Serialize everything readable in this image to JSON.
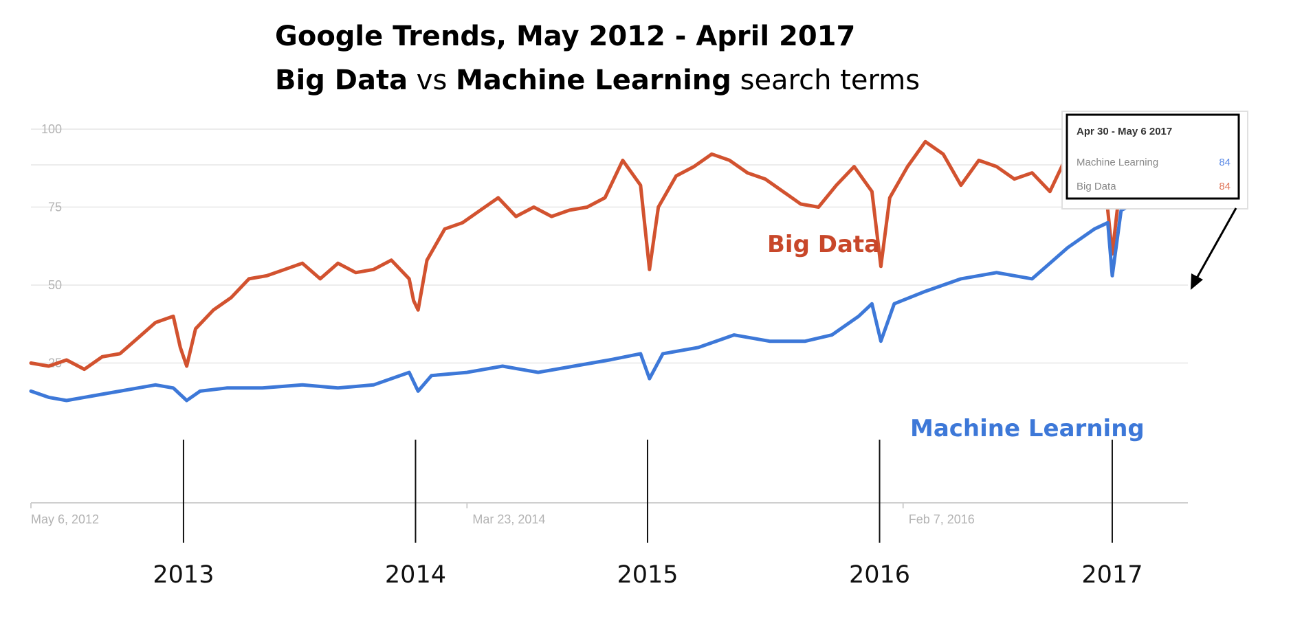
{
  "chart_data": {
    "type": "line",
    "title_line1": "Google Trends, May 2012 -  April 2017",
    "title_line2_parts": [
      {
        "text": "Big Data",
        "bold": true
      },
      {
        "text": " vs ",
        "bold": false
      },
      {
        "text": "Machine Learning",
        "bold": true
      },
      {
        "text": " search terms",
        "bold": false
      }
    ],
    "x_start": "2012-05-06",
    "x_end": "2017-04-30",
    "ylim": [
      0,
      100
    ],
    "y_ticks": [
      25,
      50,
      75,
      100
    ],
    "x_tick_labels": [
      {
        "date": "2012-05-06",
        "label": "May 6, 2012"
      },
      {
        "date": "2014-03-23",
        "label": "Mar 23, 2014"
      },
      {
        "date": "2016-02-07",
        "label": "Feb 7, 2016"
      }
    ],
    "year_markers": [
      {
        "date": "2013-01-01",
        "label": "2013"
      },
      {
        "date": "2014-01-01",
        "label": "2014"
      },
      {
        "date": "2015-01-01",
        "label": "2015"
      },
      {
        "date": "2016-01-01",
        "label": "2016"
      },
      {
        "date": "2017-01-01",
        "label": "2017"
      }
    ],
    "grid": true,
    "series": [
      {
        "name": "Big Data",
        "color": "#d2522f",
        "points": [
          [
            "2012-05-06",
            25
          ],
          [
            "2012-06-03",
            24
          ],
          [
            "2012-07-01",
            26
          ],
          [
            "2012-07-29",
            23
          ],
          [
            "2012-08-26",
            27
          ],
          [
            "2012-09-23",
            28
          ],
          [
            "2012-10-21",
            33
          ],
          [
            "2012-11-18",
            38
          ],
          [
            "2012-12-16",
            40
          ],
          [
            "2012-12-27",
            30
          ],
          [
            "2013-01-06",
            24
          ],
          [
            "2013-01-20",
            36
          ],
          [
            "2013-02-17",
            42
          ],
          [
            "2013-03-17",
            46
          ],
          [
            "2013-04-14",
            52
          ],
          [
            "2013-05-12",
            53
          ],
          [
            "2013-06-09",
            55
          ],
          [
            "2013-07-07",
            57
          ],
          [
            "2013-08-04",
            52
          ],
          [
            "2013-09-01",
            57
          ],
          [
            "2013-09-29",
            54
          ],
          [
            "2013-10-27",
            55
          ],
          [
            "2013-11-24",
            58
          ],
          [
            "2013-12-22",
            52
          ],
          [
            "2013-12-29",
            45
          ],
          [
            "2014-01-05",
            42
          ],
          [
            "2014-01-19",
            58
          ],
          [
            "2014-02-16",
            68
          ],
          [
            "2014-03-16",
            70
          ],
          [
            "2014-04-13",
            74
          ],
          [
            "2014-05-11",
            78
          ],
          [
            "2014-06-08",
            72
          ],
          [
            "2014-07-06",
            75
          ],
          [
            "2014-08-03",
            72
          ],
          [
            "2014-08-31",
            74
          ],
          [
            "2014-09-28",
            75
          ],
          [
            "2014-10-26",
            78
          ],
          [
            "2014-11-23",
            90
          ],
          [
            "2014-12-21",
            82
          ],
          [
            "2015-01-04",
            55
          ],
          [
            "2015-01-18",
            75
          ],
          [
            "2015-02-15",
            85
          ],
          [
            "2015-03-15",
            88
          ],
          [
            "2015-04-12",
            92
          ],
          [
            "2015-05-10",
            90
          ],
          [
            "2015-06-07",
            86
          ],
          [
            "2015-07-05",
            84
          ],
          [
            "2015-08-02",
            80
          ],
          [
            "2015-08-30",
            76
          ],
          [
            "2015-09-27",
            75
          ],
          [
            "2015-10-25",
            82
          ],
          [
            "2015-11-22",
            88
          ],
          [
            "2015-12-20",
            80
          ],
          [
            "2016-01-03",
            56
          ],
          [
            "2016-01-17",
            78
          ],
          [
            "2016-02-14",
            88
          ],
          [
            "2016-03-13",
            96
          ],
          [
            "2016-04-10",
            92
          ],
          [
            "2016-05-08",
            82
          ],
          [
            "2016-06-05",
            90
          ],
          [
            "2016-07-03",
            88
          ],
          [
            "2016-07-31",
            84
          ],
          [
            "2016-08-28",
            86
          ],
          [
            "2016-09-25",
            80
          ],
          [
            "2016-10-23",
            92
          ],
          [
            "2016-11-20",
            90
          ],
          [
            "2016-12-18",
            88
          ],
          [
            "2017-01-01",
            60
          ],
          [
            "2017-01-15",
            85
          ],
          [
            "2017-02-12",
            93
          ],
          [
            "2017-03-12",
            96
          ],
          [
            "2017-04-09",
            90
          ],
          [
            "2017-04-30",
            84
          ]
        ]
      },
      {
        "name": "Machine Learning",
        "color": "#3d78d8",
        "points": [
          [
            "2012-05-06",
            16
          ],
          [
            "2012-06-03",
            14
          ],
          [
            "2012-07-01",
            13
          ],
          [
            "2012-07-29",
            14
          ],
          [
            "2012-08-26",
            15
          ],
          [
            "2012-09-23",
            16
          ],
          [
            "2012-10-21",
            17
          ],
          [
            "2012-11-18",
            18
          ],
          [
            "2012-12-16",
            17
          ],
          [
            "2013-01-06",
            13
          ],
          [
            "2013-01-27",
            16
          ],
          [
            "2013-03-10",
            17
          ],
          [
            "2013-05-05",
            17
          ],
          [
            "2013-07-07",
            18
          ],
          [
            "2013-09-01",
            17
          ],
          [
            "2013-10-27",
            18
          ],
          [
            "2013-12-22",
            22
          ],
          [
            "2014-01-05",
            16
          ],
          [
            "2014-01-26",
            21
          ],
          [
            "2014-03-23",
            22
          ],
          [
            "2014-05-18",
            24
          ],
          [
            "2014-07-13",
            22
          ],
          [
            "2014-09-07",
            24
          ],
          [
            "2014-11-02",
            26
          ],
          [
            "2014-12-21",
            28
          ],
          [
            "2015-01-04",
            20
          ],
          [
            "2015-01-25",
            28
          ],
          [
            "2015-03-22",
            30
          ],
          [
            "2015-05-17",
            34
          ],
          [
            "2015-07-12",
            32
          ],
          [
            "2015-09-06",
            32
          ],
          [
            "2015-10-18",
            34
          ],
          [
            "2015-11-29",
            40
          ],
          [
            "2015-12-20",
            44
          ],
          [
            "2016-01-03",
            32
          ],
          [
            "2016-01-24",
            44
          ],
          [
            "2016-03-13",
            48
          ],
          [
            "2016-05-08",
            52
          ],
          [
            "2016-07-03",
            54
          ],
          [
            "2016-08-28",
            52
          ],
          [
            "2016-10-23",
            62
          ],
          [
            "2016-12-04",
            68
          ],
          [
            "2016-12-25",
            70
          ],
          [
            "2017-01-01",
            53
          ],
          [
            "2017-01-15",
            74
          ],
          [
            "2017-02-26",
            78
          ],
          [
            "2017-04-09",
            84
          ],
          [
            "2017-04-30",
            84
          ]
        ]
      }
    ],
    "tooltip": {
      "date": "Apr 30 - May 6 2017",
      "rows": [
        {
          "name": "Machine Learning",
          "value": "84",
          "color": "#5b8ae6"
        },
        {
          "name": "Big Data",
          "value": "84",
          "color": "#e0775a"
        }
      ]
    }
  }
}
